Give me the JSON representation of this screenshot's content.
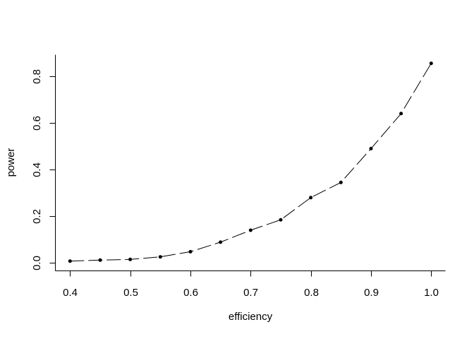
{
  "figure": {
    "background": "#ffffff",
    "foreground": "#000000"
  },
  "chart_data": {
    "type": "line",
    "title": "",
    "xlabel": "efficiency",
    "ylabel": "power",
    "x": [
      0.4,
      0.45,
      0.5,
      0.55,
      0.6,
      0.65,
      0.7,
      0.75,
      0.8,
      0.85,
      0.9,
      0.95,
      1.0
    ],
    "y": [
      0.008,
      0.012,
      0.015,
      0.026,
      0.048,
      0.089,
      0.14,
      0.185,
      0.28,
      0.345,
      0.49,
      0.64,
      0.855
    ],
    "xlim": [
      0.4,
      1.0
    ],
    "ylim": [
      0.0,
      0.8
    ],
    "x_ticks": [
      0.4,
      0.5,
      0.6,
      0.7,
      0.8,
      0.9,
      1.0
    ],
    "x_tick_labels": [
      "0.4",
      "0.5",
      "0.6",
      "0.7",
      "0.8",
      "0.9",
      "1.0"
    ],
    "y_ticks": [
      0.0,
      0.2,
      0.4,
      0.6,
      0.8
    ],
    "y_tick_labels": [
      "0.0",
      "0.2",
      "0.4",
      "0.6",
      "0.8"
    ],
    "grid": false,
    "legend": null,
    "line_style": "dashed",
    "line_color": "#000000",
    "marker": "filled-circle",
    "marker_color": "#000000"
  }
}
